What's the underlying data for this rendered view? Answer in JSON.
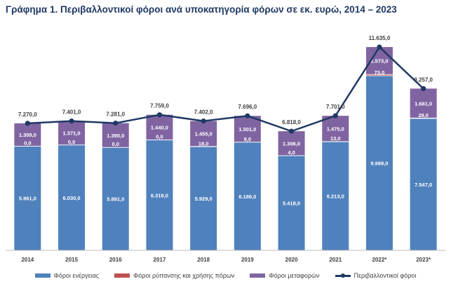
{
  "title": "Γράφημα 1. Περιβαλλοντικοί φόροι ανά υποκατηγορία φόρων σε εκ. ευρώ, 2014 – 2023",
  "colors": {
    "energy": "#4f81bd",
    "pollution": "#c0504d",
    "transport": "#8064a2",
    "total_line": "#1f3864"
  },
  "chart_data": {
    "type": "bar",
    "stacked": true,
    "title": "Γράφημα 1. Περιβαλλοντικοί φόροι ανά υποκατηγορία φόρων σε εκ. ευρώ, 2014 – 2023",
    "categories": [
      "2014",
      "2015",
      "2016",
      "2017",
      "2018",
      "2019",
      "2020",
      "2021",
      "2022*",
      "2023*"
    ],
    "series": [
      {
        "name": "Φόροι ενέργειας",
        "type": "bar",
        "values": [
          5961.0,
          6030.0,
          5891.0,
          6319.0,
          5929.0,
          6186.0,
          5418.0,
          6213.0,
          9989.0,
          7547.0
        ],
        "labels": [
          "5.961,0",
          "6.030,0",
          "5.891,0",
          "6.319,0",
          "5.929,0",
          "6.186,0",
          "5.418,0",
          "6.213,0",
          "9.989,0",
          "7.547,0"
        ]
      },
      {
        "name": "Φόροι ρύπανσης και χρήσης πόρων",
        "type": "bar",
        "values": [
          0.0,
          0.0,
          0.0,
          0.0,
          18.0,
          9.0,
          4.0,
          13.0,
          73.0,
          29.0
        ],
        "labels": [
          "0,0",
          "0,0",
          "0,0",
          "0,0",
          "18,0",
          "9,0",
          "4,0",
          "13,0",
          "73,0",
          "29,0"
        ]
      },
      {
        "name": "Φόροι μεταφορών",
        "type": "bar",
        "values": [
          1309.0,
          1371.0,
          1390.0,
          1440.0,
          1455.0,
          1501.0,
          1396.0,
          1475.0,
          1573.0,
          1681.0
        ],
        "labels": [
          "1.309,0",
          "1.371,0",
          "1.390,0",
          "1.440,0",
          "1.455,0",
          "1.501,0",
          "1.396,0",
          "1.475,0",
          "1.573,0",
          "1.681,0"
        ]
      },
      {
        "name": "Περιβαλλοντικοί φόροι",
        "type": "line",
        "values": [
          7270.0,
          7401.0,
          7281.0,
          7759.0,
          7402.0,
          7696.0,
          6818.0,
          7701.0,
          11635.0,
          9257.0
        ],
        "labels": [
          "7.270,0",
          "7.401,0",
          "7.281,0",
          "7.759,0",
          "7.402,0",
          "7.696,0",
          "6.818,0",
          "7.701,0",
          "11.635,0",
          "9.257,0"
        ]
      }
    ],
    "ylim": [
      0,
      12000
    ],
    "grid": false,
    "legend": "bottom"
  }
}
